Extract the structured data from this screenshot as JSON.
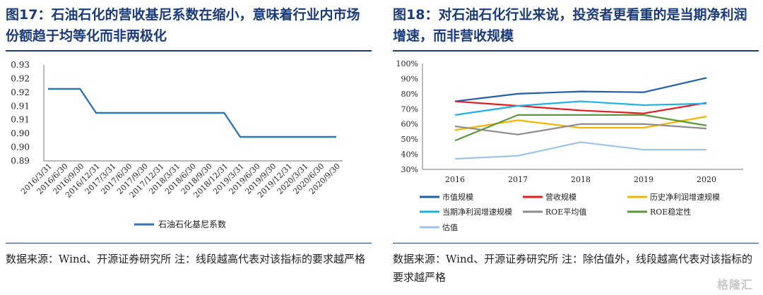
{
  "left_panel": {
    "title": "图17：石油石化的营收基尼系数在缩小，意味着行业内市场份额趋于均等化而非两极化",
    "source": "数据来源：Wind、开源证券研究所 注：线段越高代表对该指标的要求越严格"
  },
  "right_panel": {
    "title": "图18：对石油石化行业来说，投资者更看重的是当期净利润增速，而非营收规模",
    "source": "数据来源：Wind、开源证券研究所 注：除估值外，线段越高代表对该指标的要求越严格"
  },
  "watermark": "格隆汇",
  "chart_data": [
    {
      "type": "line",
      "title": "",
      "x": [
        "2016/3/31",
        "2016/6/30",
        "2016/9/30",
        "2016/12/31",
        "2017/3/31",
        "2017/6/30",
        "2017/9/30",
        "2017/12/31",
        "2018/3/31",
        "2018/6/30",
        "2018/9/30",
        "2018/12/31",
        "2019/3/31",
        "2019/6/30",
        "2019/9/30",
        "2019/12/31",
        "2020/3/31",
        "2020/6/30",
        "2020/9/30"
      ],
      "series": [
        {
          "name": "石油石化基尼系数",
          "color": "#2e75b6",
          "values": [
            0.92,
            0.92,
            0.92,
            0.91,
            0.91,
            0.91,
            0.91,
            0.91,
            0.91,
            0.91,
            0.91,
            0.91,
            0.9,
            0.9,
            0.9,
            0.9,
            0.9,
            0.9,
            0.9
          ]
        }
      ],
      "ylim": [
        0.89,
        0.93
      ],
      "yticks": [
        "0.89",
        "0.90",
        "0.90",
        "0.91",
        "0.91",
        "0.92",
        "0.92",
        "0.93"
      ],
      "xlabel": "",
      "ylabel": "",
      "legend": "bottom"
    },
    {
      "type": "line",
      "title": "",
      "x": [
        "2016",
        "2017",
        "2018",
        "2019",
        "2020"
      ],
      "series": [
        {
          "name": "市值规模",
          "color": "#1f5fa8",
          "values": [
            75,
            80,
            81.5,
            81,
            90.5
          ]
        },
        {
          "name": "营收规模",
          "color": "#e8191b",
          "values": [
            75,
            72,
            69,
            67,
            74
          ]
        },
        {
          "name": "历史净利润增速规模",
          "color": "#f5b400",
          "values": [
            56,
            62.5,
            57.5,
            57.5,
            65
          ]
        },
        {
          "name": "当期净利润增速规模",
          "color": "#1fb0e8",
          "values": [
            66,
            72,
            75,
            72.5,
            73.5
          ]
        },
        {
          "name": "ROE平均值",
          "color": "#8c8c8c",
          "values": [
            58.5,
            53,
            60,
            60,
            57
          ]
        },
        {
          "name": "ROE稳定性",
          "color": "#5b9a3c",
          "values": [
            49,
            66,
            66,
            66,
            59
          ]
        },
        {
          "name": "估值",
          "color": "#9dc3e6",
          "values": [
            37,
            39,
            48,
            43,
            43
          ]
        }
      ],
      "ylim": [
        30,
        100
      ],
      "yticks": [
        "30%",
        "40%",
        "50%",
        "60%",
        "70%",
        "80%",
        "90%",
        "100%"
      ],
      "xlabel": "",
      "ylabel": "",
      "legend": "bottom"
    }
  ]
}
